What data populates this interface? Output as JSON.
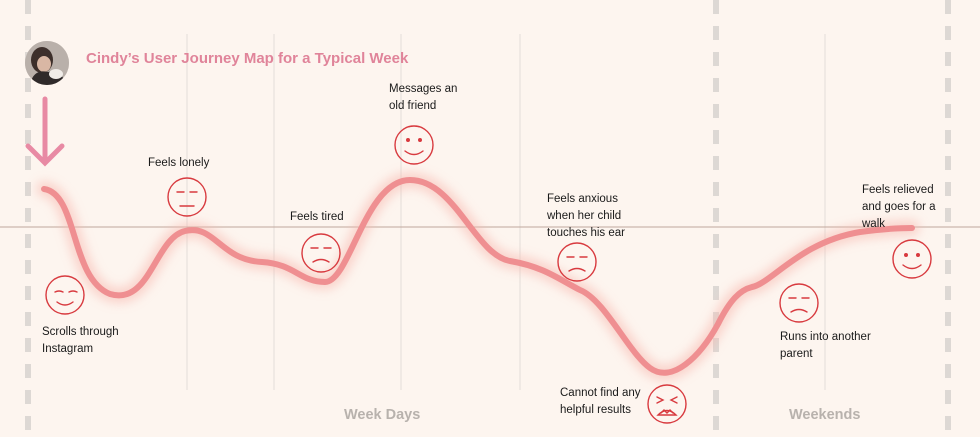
{
  "header": {
    "title": "Cindy’s User Journey Map for a Typical Week",
    "avatar": "avatar-photo",
    "start_arrow_color": "#e88aa4"
  },
  "colors": {
    "background": "#fdf5ef",
    "journey_line": "#ef8f91",
    "face_stroke": "#d83a3f",
    "divider": "#ededed",
    "baseline": "#bfa79c",
    "section_text": "#b8b2ad"
  },
  "sections": [
    {
      "label": "Week Days"
    },
    {
      "label": "Weekends"
    }
  ],
  "moments": [
    {
      "label": "Scrolls through Instagram",
      "emotion": "content"
    },
    {
      "label": "Feels lonely",
      "emotion": "neutral"
    },
    {
      "label": "Feels tired",
      "emotion": "sad"
    },
    {
      "label": "Messages an old friend",
      "emotion": "happy"
    },
    {
      "label": "Feels anxious when her child touches his ear",
      "emotion": "sad"
    },
    {
      "label": "Cannot find any helpful results",
      "emotion": "distressed"
    },
    {
      "label": "Runs into another parent",
      "emotion": "sad"
    },
    {
      "label": "Feels relieved and goes for a walk",
      "emotion": "happy"
    }
  ]
}
